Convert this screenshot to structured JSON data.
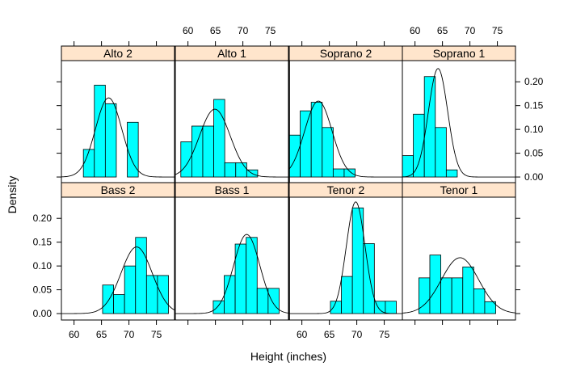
{
  "chart_data": {
    "type": "histogram",
    "xlabel": "Height (inches)",
    "ylabel": "Density",
    "xlim": [
      57.7,
      78.3
    ],
    "ylim": [
      -0.0135,
      0.2445
    ],
    "x_ticks": [
      60,
      65,
      70,
      75
    ],
    "x_tick_labels": [
      "60",
      "65",
      "70",
      "75"
    ],
    "y_ticks": [
      0.0,
      0.05,
      0.1,
      0.15,
      0.2
    ],
    "y_tick_labels": [
      "0.00",
      "0.05",
      "0.10",
      "0.15",
      "0.20"
    ],
    "bin_width": 2,
    "bar_color": "#00ffff",
    "strip_color": "#ffe5cc",
    "panels": [
      {
        "name": "Alto 2",
        "row": "top",
        "col": 1,
        "bins": [
          {
            "x0": 61.7,
            "density": 0.058
          },
          {
            "x0": 63.7,
            "density": 0.193
          },
          {
            "x0": 65.7,
            "density": 0.154
          },
          {
            "x0": 67.7,
            "density": 0.0
          },
          {
            "x0": 69.7,
            "density": 0.115
          }
        ],
        "curve": {
          "mean": 66.3,
          "sd": 2.4
        }
      },
      {
        "name": "Alto 1",
        "row": "top",
        "col": 2,
        "bins": [
          {
            "x0": 58.7,
            "density": 0.074
          },
          {
            "x0": 60.7,
            "density": 0.107
          },
          {
            "x0": 62.7,
            "density": 0.107
          },
          {
            "x0": 64.7,
            "density": 0.163
          },
          {
            "x0": 66.7,
            "density": 0.03
          },
          {
            "x0": 68.7,
            "density": 0.03
          },
          {
            "x0": 70.7,
            "density": 0.015
          }
        ],
        "curve": {
          "mean": 64.9,
          "sd": 2.8
        }
      },
      {
        "name": "Soprano 2",
        "row": "top",
        "col": 3,
        "bins": [
          {
            "x0": 57.7,
            "density": 0.088
          },
          {
            "x0": 59.7,
            "density": 0.139
          },
          {
            "x0": 61.7,
            "density": 0.157
          },
          {
            "x0": 63.7,
            "density": 0.104
          },
          {
            "x0": 65.7,
            "density": 0.017
          },
          {
            "x0": 67.7,
            "density": 0.017
          }
        ],
        "curve": {
          "mean": 63.0,
          "sd": 2.5
        }
      },
      {
        "name": "Soprano 1",
        "row": "top",
        "col": 4,
        "bins": [
          {
            "x0": 57.7,
            "density": 0.045
          },
          {
            "x0": 59.7,
            "density": 0.132
          },
          {
            "x0": 61.7,
            "density": 0.211
          },
          {
            "x0": 63.7,
            "density": 0.104
          },
          {
            "x0": 65.7,
            "density": 0.015
          }
        ],
        "curve": {
          "mean": 64.2,
          "sd": 1.75
        }
      },
      {
        "name": "Bass 2",
        "row": "bottom",
        "col": 1,
        "bins": [
          {
            "x0": 65.2,
            "density": 0.06
          },
          {
            "x0": 67.2,
            "density": 0.04
          },
          {
            "x0": 69.2,
            "density": 0.1
          },
          {
            "x0": 71.2,
            "density": 0.16
          },
          {
            "x0": 73.2,
            "density": 0.08
          },
          {
            "x0": 75.2,
            "density": 0.08
          }
        ],
        "curve": {
          "mean": 71.4,
          "sd": 2.85
        }
      },
      {
        "name": "Bass 1",
        "row": "bottom",
        "col": 2,
        "bins": [
          {
            "x0": 64.6,
            "density": 0.027
          },
          {
            "x0": 66.6,
            "density": 0.08
          },
          {
            "x0": 68.6,
            "density": 0.146
          },
          {
            "x0": 70.6,
            "density": 0.16
          },
          {
            "x0": 72.6,
            "density": 0.053
          },
          {
            "x0": 74.6,
            "density": 0.053
          }
        ],
        "curve": {
          "mean": 70.7,
          "sd": 2.4
        }
      },
      {
        "name": "Tenor 2",
        "row": "bottom",
        "col": 3,
        "bins": [
          {
            "x0": 65.2,
            "density": 0.026
          },
          {
            "x0": 67.2,
            "density": 0.078
          },
          {
            "x0": 69.2,
            "density": 0.222
          },
          {
            "x0": 71.2,
            "density": 0.147
          },
          {
            "x0": 73.2,
            "density": 0.026
          },
          {
            "x0": 75.2,
            "density": 0.026
          }
        ],
        "curve": {
          "mean": 69.8,
          "sd": 1.7
        }
      },
      {
        "name": "Tenor 1",
        "row": "bottom",
        "col": 4,
        "bins": [
          {
            "x0": 60.7,
            "density": 0.075
          },
          {
            "x0": 62.7,
            "density": 0.123
          },
          {
            "x0": 64.7,
            "density": 0.075
          },
          {
            "x0": 66.7,
            "density": 0.075
          },
          {
            "x0": 68.7,
            "density": 0.098
          },
          {
            "x0": 70.7,
            "density": 0.052
          },
          {
            "x0": 72.7,
            "density": 0.025
          }
        ],
        "curve": {
          "mean": 68.2,
          "sd": 3.4
        }
      }
    ]
  }
}
